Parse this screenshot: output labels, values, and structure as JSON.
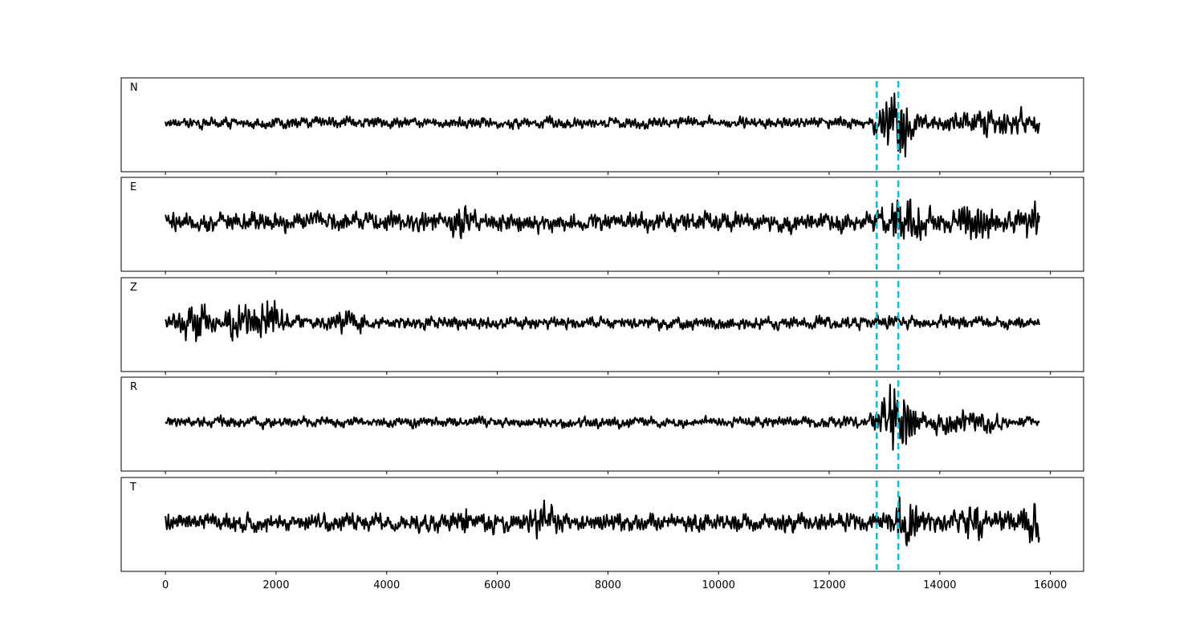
{
  "chart_data": {
    "type": "line",
    "title": "",
    "xlabel": "",
    "ylabel": "",
    "xlim": [
      -800,
      16600
    ],
    "x_ticks": [
      0,
      2000,
      4000,
      6000,
      8000,
      10000,
      12000,
      14000,
      16000
    ],
    "x_tick_labels": [
      "0",
      "2000",
      "4000",
      "6000",
      "8000",
      "10000",
      "12000",
      "14000",
      "16000"
    ],
    "x_range": [
      0,
      15800
    ],
    "panels": [
      "N",
      "E",
      "Z",
      "R",
      "T"
    ],
    "markers": {
      "x": [
        12860,
        13250
      ],
      "color": "#17becf",
      "style": "dashed"
    },
    "trace_color": "#000000",
    "grid": false
  }
}
